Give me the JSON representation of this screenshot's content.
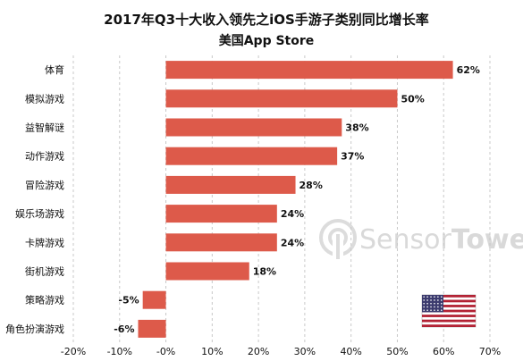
{
  "chart_data": {
    "type": "bar",
    "orientation": "horizontal",
    "title": "2017年Q3十大收入领先之iOS手游子类别同比增长率",
    "subtitle": "美国App Store",
    "categories": [
      "体育",
      "模拟游戏",
      "益智解谜",
      "动作游戏",
      "冒险游戏",
      "娱乐场游戏",
      "卡牌游戏",
      "街机游戏",
      "策略游戏",
      "角色扮演游戏"
    ],
    "values": [
      62,
      50,
      38,
      37,
      28,
      24,
      24,
      18,
      -5,
      -6
    ],
    "value_labels": [
      "62%",
      "50%",
      "38%",
      "37%",
      "28%",
      "24%",
      "24%",
      "18%",
      "-5%",
      "-6%"
    ],
    "xlim": [
      -20,
      70
    ],
    "xticks": [
      -20,
      -10,
      0,
      10,
      20,
      30,
      40,
      50,
      60,
      70
    ],
    "xtick_labels": [
      "-20%",
      "-10%",
      "-0%",
      "10%",
      "20%",
      "30%",
      "40%",
      "50%",
      "60%",
      "70%"
    ],
    "xlabel": "",
    "ylabel": "",
    "grid": "vertical dashed",
    "legend": "none",
    "bar_color": "#dd5a4a",
    "grid_color": "#c8c8c8"
  },
  "watermark": {
    "text_part1": "Sensor",
    "text_part2": "Tower"
  },
  "flag": {
    "icon": "us-flag-icon",
    "red": "#b22234",
    "white": "#ffffff",
    "blue": "#3c3b6e"
  }
}
